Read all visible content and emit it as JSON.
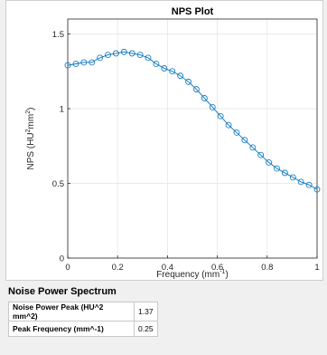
{
  "chart_data": {
    "type": "line",
    "title": "NPS Plot",
    "xlabel": "Frequency (mm",
    "xlabel_sup": "-1",
    "xlabel_end": ")",
    "ylabel": "NPS (HU",
    "ylabel_sup1": "2",
    "ylabel_mid": "mm",
    "ylabel_sup2": "2",
    "ylabel_end": ")",
    "xlim": [
      0,
      1
    ],
    "ylim": [
      0,
      1.6
    ],
    "xticks": [
      "0",
      "0.2",
      "0.4",
      "0.6",
      "0.8",
      "1"
    ],
    "yticks": [
      "0",
      "0.5",
      "1",
      "1.5"
    ],
    "grid": true,
    "series": [
      {
        "color": "#0072bd",
        "marker": "circle",
        "x": [
          0.0,
          0.0323,
          0.0645,
          0.0968,
          0.129,
          0.1613,
          0.1935,
          0.2258,
          0.2581,
          0.2903,
          0.3226,
          0.3548,
          0.3871,
          0.4194,
          0.4516,
          0.4839,
          0.5161,
          0.5484,
          0.5806,
          0.6129,
          0.6452,
          0.6774,
          0.7097,
          0.7419,
          0.7742,
          0.8065,
          0.8387,
          0.871,
          0.9032,
          0.9355,
          0.9677,
          1.0
        ],
        "y": [
          1.29,
          1.3,
          1.31,
          1.31,
          1.34,
          1.36,
          1.37,
          1.38,
          1.37,
          1.36,
          1.34,
          1.3,
          1.27,
          1.25,
          1.22,
          1.18,
          1.13,
          1.07,
          1.01,
          0.95,
          0.89,
          0.84,
          0.79,
          0.74,
          0.69,
          0.64,
          0.6,
          0.57,
          0.54,
          0.51,
          0.49,
          0.46
        ]
      }
    ]
  },
  "section_title": "Noise Power Spectrum",
  "metrics": [
    {
      "label": "Noise Power Peak (HU^2 mm^2)",
      "value": "1.37"
    },
    {
      "label": "Peak Frequency (mm^-1)",
      "value": "0.25"
    }
  ]
}
